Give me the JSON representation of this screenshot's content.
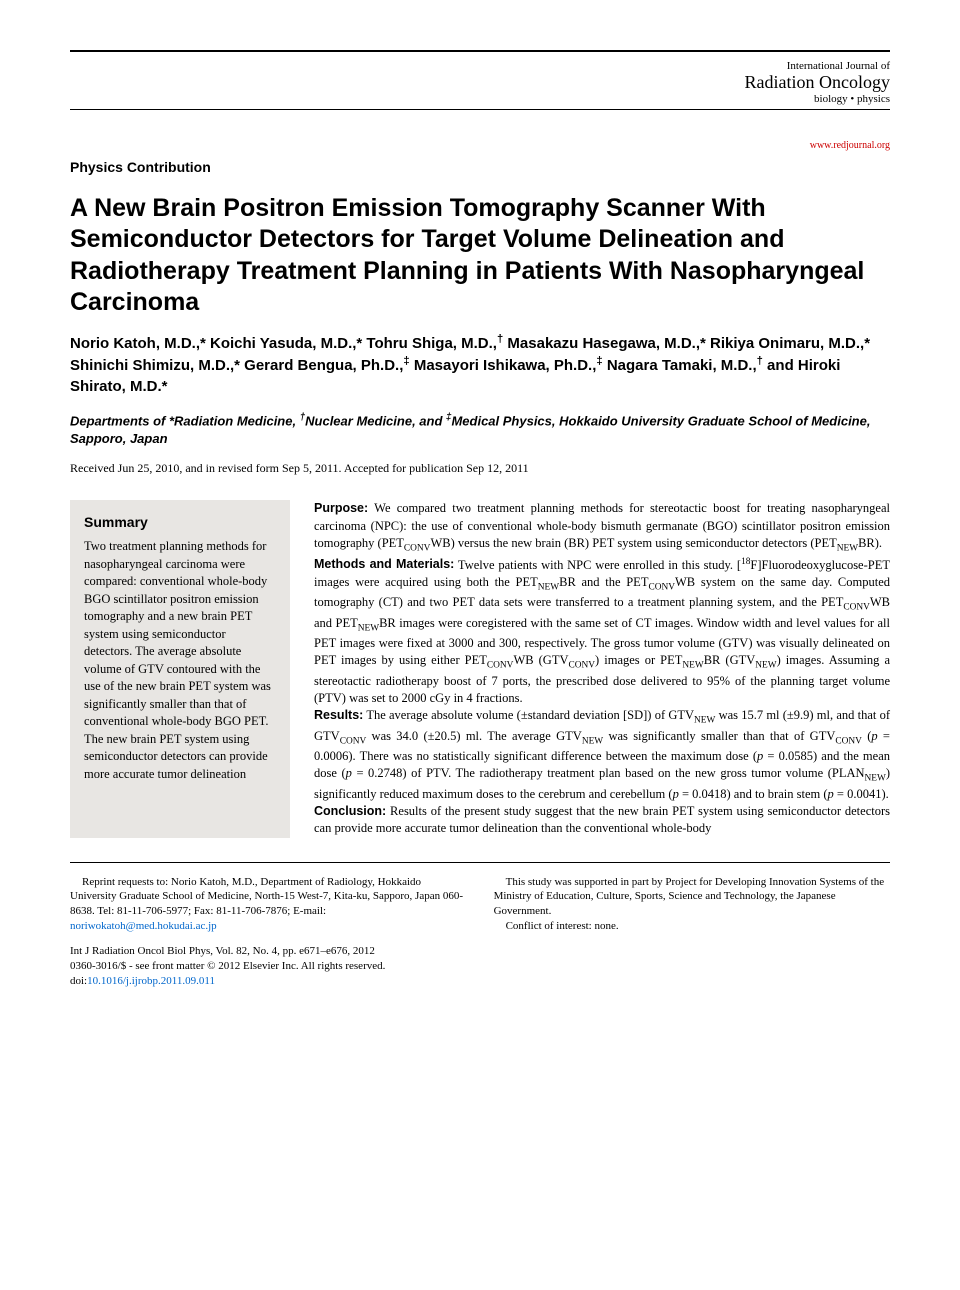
{
  "journal": {
    "name_small": "International Journal of",
    "name_main": "Radiation Oncology",
    "name_sub": "biology • physics",
    "url": "www.redjournal.org"
  },
  "section_label": "Physics Contribution",
  "title": "A New Brain Positron Emission Tomography Scanner With Semiconductor Detectors for Target Volume Delineation and Radiotherapy Treatment Planning in Patients With Nasopharyngeal Carcinoma",
  "authors_html": "Norio Katoh, M.D.,* Koichi Yasuda, M.D.,* Tohru Shiga, M.D.,<sup>†</sup> Masakazu Hasegawa, M.D.,* Rikiya Onimaru, M.D.,* Shinichi Shimizu, M.D.,* Gerard Bengua, Ph.D.,<sup>‡</sup> Masayori Ishikawa, Ph.D.,<sup>‡</sup> Nagara Tamaki, M.D.,<sup>†</sup> and Hiroki Shirato, M.D.*",
  "affiliations_html": "Departments of *Radiation Medicine, <sup>†</sup>Nuclear Medicine, and <sup>‡</sup>Medical Physics, Hokkaido University Graduate School of Medicine, Sapporo, Japan",
  "dates": "Received Jun 25, 2010, and in revised form Sep 5, 2011. Accepted for publication Sep 12, 2011",
  "summary": {
    "heading": "Summary",
    "text": "Two treatment planning methods for nasopharyngeal carcinoma were compared: conventional whole-body BGO scintillator positron emission tomography and a new brain PET system using semiconductor detectors. The average absolute volume of GTV contoured with the use of the new brain PET system was significantly smaller than that of conventional whole-body BGO PET. The new brain PET system using semiconductor detectors can provide more accurate tumor delineation"
  },
  "abstract": {
    "purpose_label": "Purpose:",
    "purpose_html": " We compared two treatment planning methods for stereotactic boost for treating nasopharyngeal carcinoma (NPC): the use of conventional whole-body bismuth germanate (BGO) scintillator positron emission tomography (PET<sub>CONV</sub>WB) versus the new brain (BR) PET system using semiconductor detectors (PET<sub>NEW</sub>BR).",
    "methods_label": "Methods and Materials:",
    "methods_html": " Twelve patients with NPC were enrolled in this study. [<sup>18</sup>F]Fluorodeoxyglucose-PET images were acquired using both the PET<sub>NEW</sub>BR and the PET<sub>CONV</sub>WB system on the same day. Computed tomography (CT) and two PET data sets were transferred to a treatment planning system, and the PET<sub>CONV</sub>WB and PET<sub>NEW</sub>BR images were coregistered with the same set of CT images. Window width and level values for all PET images were fixed at 3000 and 300, respectively. The gross tumor volume (GTV) was visually delineated on PET images by using either PET<sub>CONV</sub>WB (GTV<sub>CONV</sub>) images or PET<sub>NEW</sub>BR (GTV<sub>NEW</sub>) images. Assuming a stereotactic radiotherapy boost of 7 ports, the prescribed dose delivered to 95% of the planning target volume (PTV) was set to 2000 cGy in 4 fractions.",
    "results_label": "Results:",
    "results_html": " The average absolute volume (±standard deviation [SD]) of GTV<sub>NEW</sub> was 15.7 ml (±9.9) ml, and that of GTV<sub>CONV</sub> was 34.0 (±20.5) ml. The average GTV<sub>NEW</sub> was significantly smaller than that of GTV<sub>CONV</sub> (<i>p</i> = 0.0006). There was no statistically significant difference between the maximum dose (<i>p</i> = 0.0585) and the mean dose (<i>p</i> = 0.2748) of PTV. The radiotherapy treatment plan based on the new gross tumor volume (PLAN<sub>NEW</sub>) significantly reduced maximum doses to the cerebrum and cerebellum (<i>p</i> = 0.0418) and to brain stem (<i>p</i> = 0.0041).",
    "conclusion_label": "Conclusion:",
    "conclusion_html": " Results of the present study suggest that the new brain PET system using semiconductor detectors can provide more accurate tumor delineation than the conventional whole-body"
  },
  "footer": {
    "reprint_text": "Reprint requests to: Norio Katoh, M.D., Department of Radiology, Hokkaido University Graduate School of Medicine, North-15 West-7, Kita-ku, Sapporo, Japan 060-8638. Tel: 81-11-706-5977; Fax: 81-11-706-7876; E-mail: ",
    "reprint_email": "noriwokatoh@med.hokudai.ac.jp",
    "support_text": "This study was supported in part by Project for Developing Innovation Systems of the Ministry of Education, Culture, Sports, Science and Technology, the Japanese Government.",
    "conflict_text": "Conflict of interest: none.",
    "citation": "Int J Radiation Oncol Biol Phys, Vol. 82, No. 4, pp. e671–e676, 2012",
    "copyright": "0360-3016/$ - see front matter © 2012 Elsevier Inc. All rights reserved.",
    "doi_label": "doi:",
    "doi": "10.1016/j.ijrobp.2011.09.011"
  },
  "colors": {
    "background": "#ffffff",
    "text": "#000000",
    "link_red": "#cc0000",
    "link_blue": "#0066cc",
    "summary_bg": "#e8e6e3"
  }
}
